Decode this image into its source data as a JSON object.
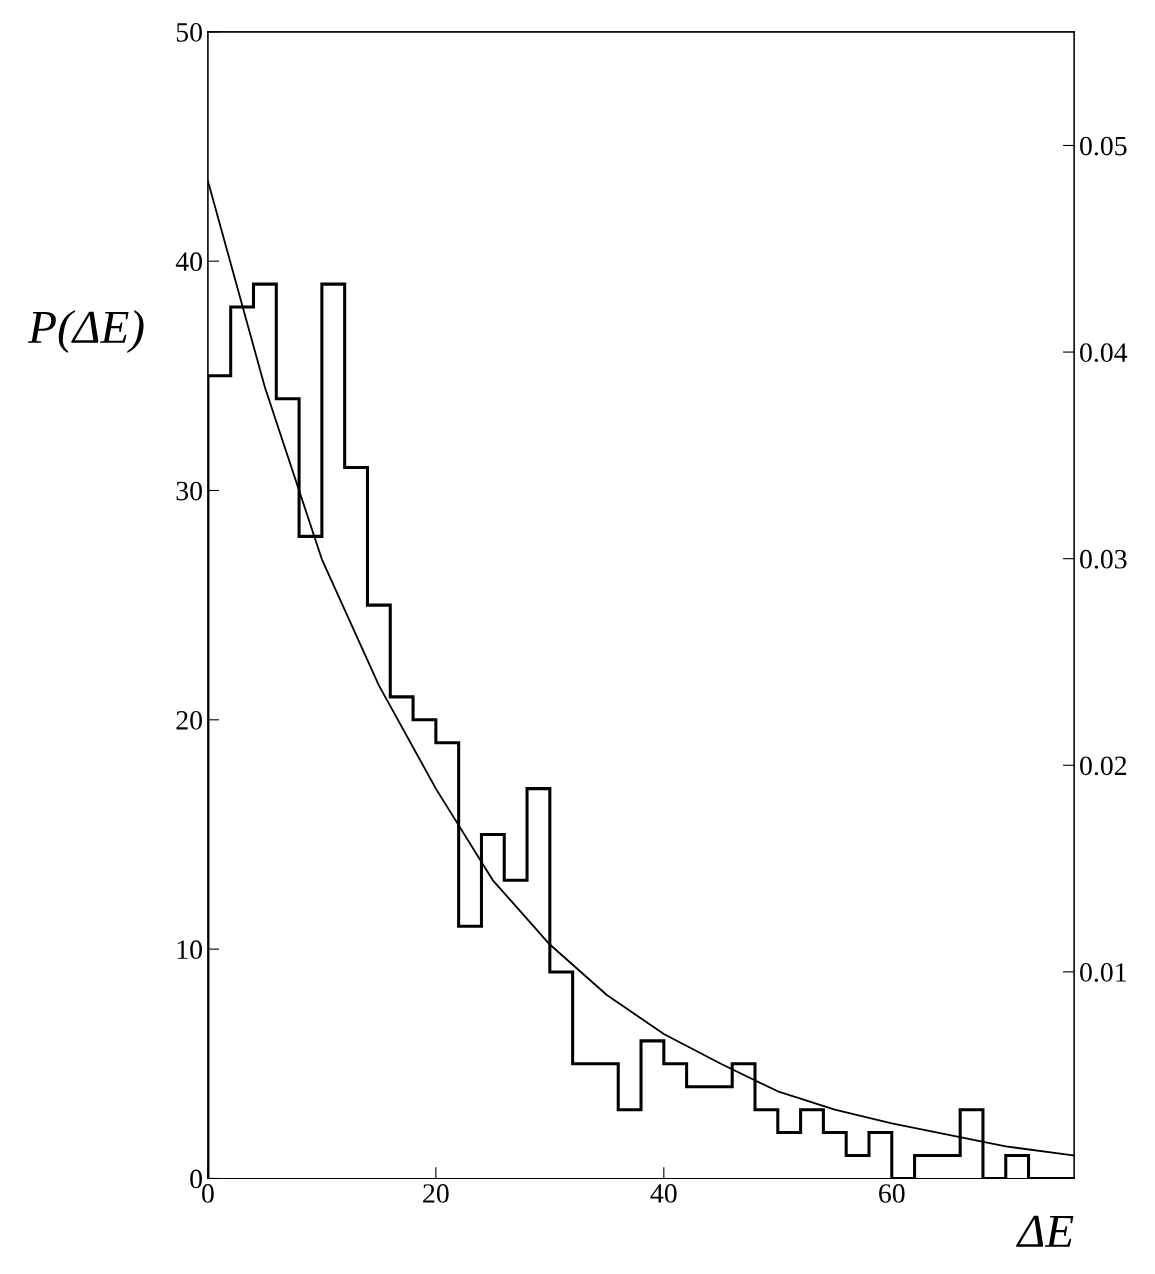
{
  "chart_data": {
    "type": "histogram",
    "xlabel": "ΔE",
    "ylabel": "P(ΔE)",
    "xlim": [
      0,
      76
    ],
    "xticks": [
      0,
      20,
      40,
      60
    ],
    "ylim": [
      0,
      50
    ],
    "yticks": [
      0,
      10,
      20,
      30,
      40,
      50
    ],
    "y2lim": [
      0,
      0.0555
    ],
    "y2ticks": [
      0.01,
      0.02,
      0.03,
      0.04,
      0.05
    ],
    "grid": false,
    "series": [
      {
        "color": "#000000",
        "bins": [
          0,
          2,
          4,
          6,
          8,
          10,
          12,
          14,
          16,
          18,
          20,
          22,
          24,
          26,
          28,
          30,
          32,
          34,
          36,
          38,
          40,
          42,
          44,
          46,
          48,
          50,
          52,
          54,
          56,
          58,
          60,
          62,
          64,
          66,
          68,
          70,
          72,
          74,
          76
        ],
        "values": [
          35,
          38,
          39,
          34,
          28,
          39,
          31,
          25,
          21,
          20,
          19,
          11,
          15,
          13,
          17,
          9,
          5,
          5,
          3,
          6,
          5,
          4,
          4,
          5,
          3,
          2,
          3,
          2,
          1,
          2,
          0,
          1,
          1,
          3,
          0,
          1,
          0,
          0
        ]
      },
      {
        "type": "line",
        "color": "#000000",
        "x": [
          0,
          5,
          10,
          15,
          20,
          25,
          30,
          35,
          40,
          45,
          50,
          55,
          60,
          65,
          70,
          76
        ],
        "values": [
          43.5,
          34.5,
          27,
          21.5,
          17,
          13,
          10.2,
          8,
          6.3,
          5,
          3.8,
          3,
          2.4,
          1.9,
          1.4,
          1.0
        ]
      }
    ]
  }
}
